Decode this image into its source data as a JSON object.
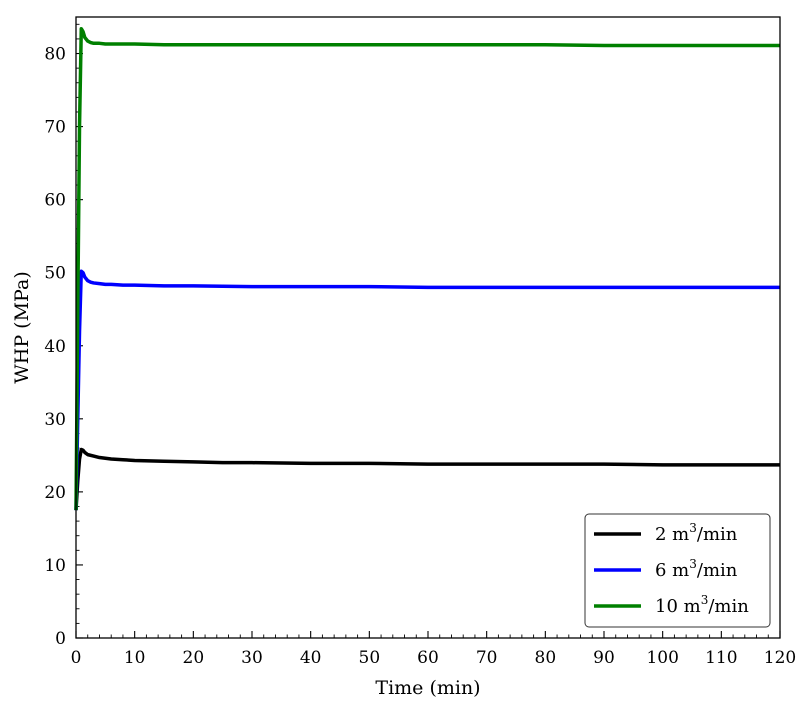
{
  "chart_data": {
    "type": "line",
    "title": "",
    "xlabel": "Time (min)",
    "ylabel": "WHP (MPa)",
    "xlim": [
      0,
      120
    ],
    "ylim": [
      0,
      85
    ],
    "xticks": [
      0,
      10,
      20,
      30,
      40,
      50,
      60,
      70,
      80,
      90,
      100,
      110,
      120
    ],
    "yticks": [
      0,
      10,
      20,
      30,
      40,
      50,
      60,
      70,
      80
    ],
    "x_minor_step": 2,
    "y_minor_step": 2,
    "grid": false,
    "legend_position": "bottom-right",
    "series": [
      {
        "name": "2 m³/min",
        "legend_base": "2 m",
        "legend_sup": "3",
        "legend_rest": "/min",
        "color": "#000000",
        "x": [
          0,
          0.3,
          0.6,
          0.9,
          1.2,
          1.5,
          2,
          3,
          4,
          5,
          6,
          8,
          10,
          15,
          20,
          25,
          30,
          40,
          50,
          60,
          70,
          80,
          90,
          100,
          110,
          120
        ],
        "y": [
          17.5,
          21.5,
          24.5,
          25.8,
          25.7,
          25.4,
          25.1,
          24.9,
          24.7,
          24.6,
          24.5,
          24.4,
          24.3,
          24.2,
          24.1,
          24.0,
          24.0,
          23.9,
          23.9,
          23.8,
          23.8,
          23.8,
          23.8,
          23.7,
          23.7,
          23.7
        ]
      },
      {
        "name": "6 m³/min",
        "legend_base": "6 m",
        "legend_sup": "3",
        "legend_rest": "/min",
        "color": "#0000ff",
        "x": [
          0,
          0.3,
          0.6,
          0.9,
          1.2,
          1.5,
          2,
          2.5,
          3,
          4,
          5,
          6,
          8,
          10,
          15,
          20,
          30,
          40,
          50,
          60,
          70,
          80,
          90,
          100,
          110,
          120
        ],
        "y": [
          17.5,
          30.0,
          42.0,
          50.2,
          50.0,
          49.4,
          48.9,
          48.7,
          48.6,
          48.5,
          48.4,
          48.4,
          48.3,
          48.3,
          48.2,
          48.2,
          48.1,
          48.1,
          48.1,
          48.0,
          48.0,
          48.0,
          48.0,
          48.0,
          48.0,
          48.0
        ]
      },
      {
        "name": "10 m³/min",
        "legend_base": "10 m",
        "legend_sup": "3",
        "legend_rest": "/min",
        "color": "#008000",
        "x": [
          0,
          0.3,
          0.6,
          0.9,
          1.2,
          1.5,
          2,
          2.5,
          3,
          4,
          5,
          6,
          8,
          10,
          15,
          20,
          30,
          40,
          50,
          60,
          70,
          80,
          90,
          100,
          110,
          120
        ],
        "y": [
          17.5,
          45.0,
          70.0,
          83.4,
          83.0,
          82.2,
          81.7,
          81.5,
          81.4,
          81.4,
          81.3,
          81.3,
          81.3,
          81.3,
          81.2,
          81.2,
          81.2,
          81.2,
          81.2,
          81.2,
          81.2,
          81.2,
          81.1,
          81.1,
          81.1,
          81.1
        ]
      }
    ]
  }
}
